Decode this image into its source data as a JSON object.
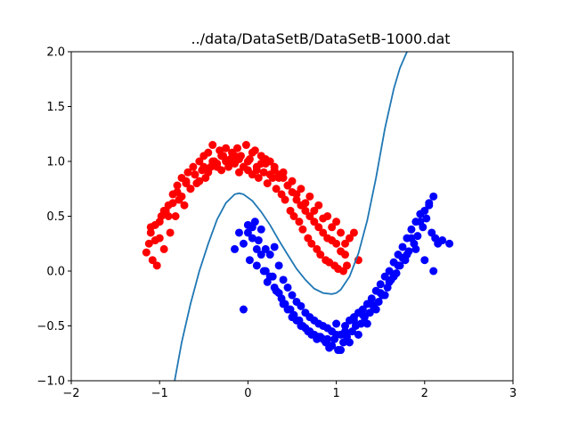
{
  "chart_data": {
    "type": "scatter",
    "title": "../data/DataSetB/DataSetB-1000.dat",
    "xlabel": "",
    "ylabel": "",
    "xlim": [
      -2,
      3
    ],
    "ylim": [
      -1,
      2
    ],
    "xticks": [
      "−2",
      "−1",
      "0",
      "1",
      "2",
      "3"
    ],
    "yticks": [
      "−1.0",
      "−0.5",
      "0.0",
      "0.5",
      "1.0",
      "1.5",
      "2.0"
    ],
    "grid": false,
    "legend": "none",
    "series": [
      {
        "color": "#ff0000",
        "marker": "circle",
        "x": [
          -1.15,
          -1.12,
          -1.1,
          -1.08,
          -1.05,
          -1.03,
          -1.0,
          -0.98,
          -0.95,
          -0.93,
          -0.9,
          -0.88,
          -0.85,
          -0.82,
          -0.8,
          -0.78,
          -0.75,
          -0.72,
          -0.7,
          -0.68,
          -0.65,
          -0.62,
          -0.6,
          -0.58,
          -0.55,
          -0.52,
          -0.5,
          -0.48,
          -0.45,
          -0.42,
          -0.4,
          -0.38,
          -0.35,
          -0.32,
          -0.3,
          -0.28,
          -0.25,
          -0.22,
          -0.2,
          -0.18,
          -0.15,
          -0.12,
          -0.1,
          -0.08,
          -0.05,
          -0.02,
          0.0,
          0.02,
          0.05,
          0.08,
          0.1,
          0.12,
          0.15,
          0.18,
          0.2,
          0.22,
          0.25,
          0.28,
          0.3,
          0.32,
          0.35,
          0.38,
          0.4,
          0.42,
          0.45,
          0.48,
          0.5,
          0.52,
          0.55,
          0.58,
          0.6,
          0.62,
          0.65,
          0.68,
          0.7,
          0.72,
          0.75,
          0.78,
          0.8,
          0.82,
          0.85,
          0.88,
          0.9,
          0.92,
          0.95,
          0.98,
          1.0,
          1.02,
          1.05,
          1.08,
          1.1,
          1.12,
          1.15,
          1.2,
          1.25,
          -1.1,
          -1.05,
          -1.0,
          -0.95,
          -0.9,
          -0.85,
          -0.8,
          -0.75,
          -0.7,
          -0.65,
          -0.6,
          -0.55,
          -0.5,
          -0.45,
          -0.4,
          -0.35,
          -0.3,
          -0.25,
          -0.2,
          -0.15,
          -0.1,
          -0.05,
          0.0,
          0.05,
          0.1,
          0.15,
          0.2,
          0.25,
          0.3,
          0.35,
          0.4,
          0.45,
          0.5,
          0.55,
          0.6,
          0.65,
          0.7,
          0.75,
          0.8,
          0.85,
          0.9,
          0.95,
          1.0,
          1.05,
          1.1
        ],
        "y": [
          0.17,
          0.25,
          0.35,
          0.1,
          0.42,
          0.05,
          0.3,
          0.5,
          0.2,
          0.55,
          0.6,
          0.35,
          0.7,
          0.5,
          0.78,
          0.65,
          0.85,
          0.6,
          0.82,
          0.9,
          0.75,
          0.95,
          0.88,
          0.8,
          1.0,
          0.92,
          1.05,
          0.85,
          1.08,
          0.95,
          1.15,
          1.0,
          0.98,
          1.1,
          0.92,
          1.05,
          1.12,
          0.95,
          1.02,
          1.08,
          0.98,
          1.12,
          0.9,
          1.05,
          0.95,
          1.15,
          0.92,
          1.02,
          0.88,
          1.1,
          0.95,
          0.85,
          1.05,
          0.9,
          0.98,
          0.8,
          1.0,
          0.85,
          0.92,
          0.75,
          0.88,
          0.7,
          0.85,
          0.65,
          0.78,
          0.55,
          0.72,
          0.5,
          0.65,
          0.45,
          0.6,
          0.38,
          0.55,
          0.3,
          0.5,
          0.25,
          0.45,
          0.2,
          0.4,
          0.15,
          0.35,
          0.1,
          0.3,
          0.08,
          0.28,
          0.05,
          0.25,
          0.02,
          0.18,
          0.0,
          0.15,
          0.05,
          0.3,
          0.35,
          0.1,
          0.4,
          0.28,
          0.45,
          0.55,
          0.5,
          0.62,
          0.72,
          0.68,
          0.8,
          0.75,
          0.88,
          0.82,
          0.95,
          0.9,
          1.0,
          0.95,
          1.05,
          1.0,
          0.98,
          1.05,
          1.02,
          0.95,
          1.0,
          1.08,
          0.92,
          0.98,
          1.02,
          0.88,
          0.95,
          0.85,
          0.9,
          0.78,
          0.82,
          0.7,
          0.75,
          0.62,
          0.68,
          0.55,
          0.6,
          0.48,
          0.5,
          0.4,
          0.45,
          0.35,
          0.25
        ]
      },
      {
        "color": "#0000ff",
        "marker": "circle",
        "x": [
          -0.15,
          -0.1,
          -0.05,
          0.0,
          0.02,
          0.05,
          0.08,
          0.1,
          0.12,
          0.15,
          0.18,
          0.2,
          0.22,
          0.25,
          0.28,
          0.3,
          0.32,
          0.35,
          0.38,
          0.4,
          0.42,
          0.45,
          0.48,
          0.5,
          0.52,
          0.55,
          0.58,
          0.6,
          0.62,
          0.65,
          0.68,
          0.7,
          0.72,
          0.75,
          0.78,
          0.8,
          0.82,
          0.85,
          0.88,
          0.9,
          0.92,
          0.95,
          0.98,
          1.0,
          1.02,
          1.05,
          1.08,
          1.1,
          1.12,
          1.15,
          1.18,
          1.2,
          1.22,
          1.25,
          1.28,
          1.3,
          1.32,
          1.35,
          1.38,
          1.4,
          1.42,
          1.45,
          1.48,
          1.5,
          1.52,
          1.55,
          1.58,
          1.6,
          1.62,
          1.65,
          1.68,
          1.7,
          1.72,
          1.75,
          1.78,
          1.8,
          1.82,
          1.85,
          1.88,
          1.9,
          1.92,
          1.95,
          1.98,
          2.0,
          2.02,
          2.05,
          2.08,
          2.1,
          2.12,
          2.15,
          2.2,
          2.28,
          -0.05,
          0.05,
          0.15,
          0.25,
          0.35,
          0.45,
          0.55,
          0.65,
          0.75,
          0.85,
          0.95,
          1.05,
          1.15,
          1.25,
          1.35,
          1.45,
          1.55,
          1.65,
          1.75,
          1.85,
          1.95,
          2.05,
          0.0,
          0.1,
          0.2,
          0.3,
          0.4,
          0.5,
          0.6,
          0.7,
          0.8,
          0.9,
          1.0,
          1.1,
          1.2,
          1.3,
          1.4,
          1.5,
          1.6,
          1.7,
          1.8,
          1.9,
          2.0,
          2.1
        ],
        "y": [
          0.2,
          0.35,
          0.25,
          0.42,
          0.1,
          0.3,
          0.45,
          0.05,
          0.28,
          0.38,
          0.0,
          0.2,
          -0.1,
          0.15,
          -0.05,
          0.22,
          -0.18,
          0.05,
          -0.25,
          -0.08,
          -0.3,
          -0.15,
          -0.35,
          -0.22,
          -0.4,
          -0.28,
          -0.45,
          -0.32,
          -0.5,
          -0.38,
          -0.55,
          -0.42,
          -0.58,
          -0.45,
          -0.62,
          -0.48,
          -0.6,
          -0.5,
          -0.65,
          -0.52,
          -0.7,
          -0.55,
          -0.62,
          -0.48,
          -0.72,
          -0.58,
          -0.65,
          -0.5,
          -0.6,
          -0.45,
          -0.55,
          -0.42,
          -0.5,
          -0.38,
          -0.48,
          -0.35,
          -0.42,
          -0.3,
          -0.38,
          -0.25,
          -0.32,
          -0.18,
          -0.28,
          -0.12,
          -0.22,
          -0.05,
          -0.15,
          0.0,
          -0.08,
          0.08,
          -0.02,
          0.15,
          0.05,
          0.22,
          0.1,
          0.3,
          0.18,
          0.38,
          0.25,
          0.45,
          0.32,
          0.52,
          0.4,
          0.55,
          0.48,
          0.62,
          0.35,
          0.68,
          0.3,
          0.25,
          0.28,
          0.25,
          -0.35,
          0.4,
          0.15,
          -0.05,
          -0.2,
          -0.35,
          -0.45,
          -0.52,
          -0.58,
          -0.62,
          -0.68,
          -0.72,
          -0.65,
          -0.58,
          -0.48,
          -0.35,
          -0.22,
          -0.05,
          0.12,
          0.3,
          0.45,
          0.6,
          0.35,
          0.2,
          0.0,
          -0.15,
          -0.3,
          -0.42,
          -0.5,
          -0.55,
          -0.6,
          -0.62,
          -0.58,
          -0.55,
          -0.45,
          -0.4,
          -0.3,
          -0.2,
          -0.1,
          0.05,
          0.15,
          0.2,
          0.1,
          0.0
        ]
      }
    ],
    "curve": {
      "type": "line",
      "color": "#1f77b4",
      "x": [
        -0.83,
        -0.75,
        -0.65,
        -0.55,
        -0.45,
        -0.35,
        -0.25,
        -0.15,
        -0.1,
        -0.05,
        0.05,
        0.15,
        0.25,
        0.35,
        0.45,
        0.55,
        0.65,
        0.75,
        0.85,
        0.95,
        1.0,
        1.05,
        1.15,
        1.25,
        1.35,
        1.45,
        1.55,
        1.65,
        1.72,
        1.8
      ],
      "y": [
        -1.0,
        -0.65,
        -0.3,
        0.0,
        0.25,
        0.47,
        0.62,
        0.7,
        0.71,
        0.7,
        0.64,
        0.54,
        0.42,
        0.28,
        0.15,
        0.02,
        -0.08,
        -0.16,
        -0.2,
        -0.21,
        -0.2,
        -0.17,
        -0.05,
        0.16,
        0.46,
        0.85,
        1.3,
        1.66,
        1.85,
        2.0
      ]
    }
  }
}
